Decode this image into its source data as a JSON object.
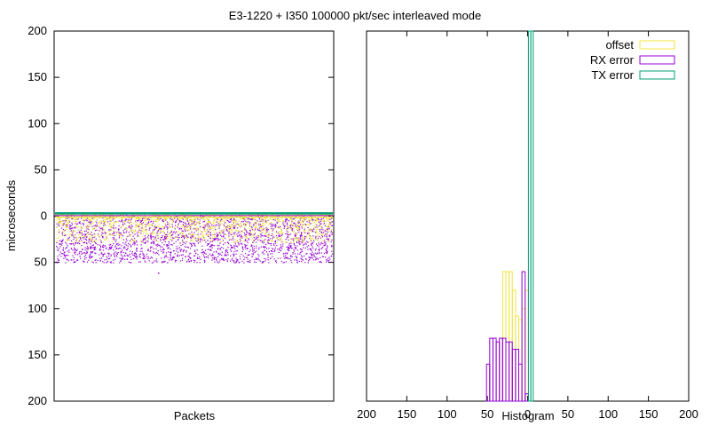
{
  "chart_data": {
    "title": "E3-1220 + I350 100000 pkt/sec interleaved mode",
    "ylabel": "microseconds",
    "left_panel": {
      "type": "scatter",
      "xlabel": "Packets",
      "ylim": [
        200,
        -200
      ],
      "y_ticks": [
        "200",
        "150",
        "100",
        "50",
        "0",
        "50",
        "100",
        "150",
        "200"
      ],
      "series": [
        {
          "name": "offset",
          "color": "#f0e442",
          "y_range_approx": [
            -2,
            28
          ]
        },
        {
          "name": "RX error",
          "color": "#9400d3",
          "y_range_approx": [
            -2,
            50
          ],
          "outlier": 61
        },
        {
          "name": "TX error",
          "color": "#009e73",
          "y_approx": -3
        }
      ]
    },
    "right_panel": {
      "type": "bar",
      "xlabel": "Histogram",
      "xlim": [
        200,
        -200
      ],
      "x_ticks": [
        "200",
        "150",
        "100",
        "50",
        "0",
        "50",
        "100",
        "150",
        "200"
      ],
      "legend_position": "top-right",
      "series": [
        {
          "name": "offset",
          "color": "#f0e442",
          "bins": [
            [
              31,
              27,
              0.35
            ],
            [
              27,
              23,
              0.35
            ],
            [
              23,
              19,
              0.35
            ],
            [
              19,
              15,
              0.3
            ],
            [
              15,
              11,
              0.23
            ],
            [
              11,
              7,
              0.22
            ],
            [
              7,
              3,
              0.25
            ],
            [
              3,
              -1,
              0.3
            ]
          ]
        },
        {
          "name": "RX error",
          "color": "#9400d3",
          "bins": [
            [
              51,
              47,
              0.1
            ],
            [
              47,
              43,
              0.17
            ],
            [
              43,
              39,
              0.17
            ],
            [
              39,
              35,
              0.16
            ],
            [
              35,
              31,
              0.17
            ],
            [
              31,
              27,
              0.17
            ],
            [
              27,
              23,
              0.16
            ],
            [
              23,
              19,
              0.16
            ],
            [
              19,
              15,
              0.14
            ],
            [
              15,
              11,
              0.14
            ],
            [
              11,
              7,
              0.1
            ],
            [
              7,
              3,
              0.35
            ],
            [
              3,
              -1,
              0.02
            ]
          ]
        },
        {
          "name": "TX error",
          "color": "#009e73",
          "bins": [
            [
              -1,
              -4,
              1.0
            ],
            [
              -4,
              -7,
              1.0
            ]
          ]
        }
      ]
    }
  }
}
